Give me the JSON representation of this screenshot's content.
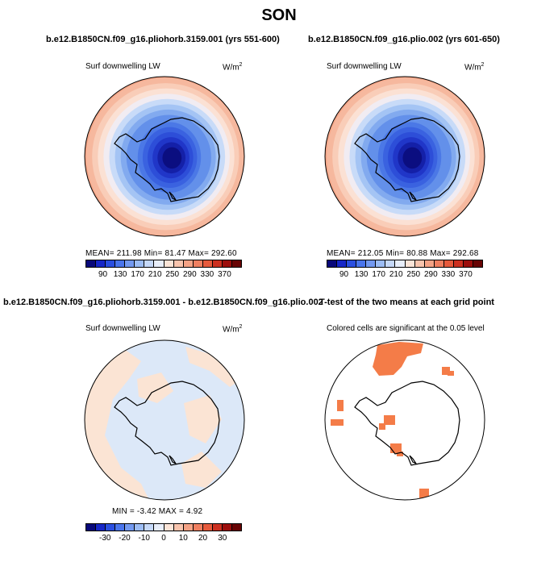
{
  "season": "SON",
  "panels": {
    "top_left": {
      "title": "b.e12.B1850CN.f09_g16.pliohorb.3159.001 (yrs 551-600)",
      "variable": "Surf downwelling LW",
      "units": "W/m",
      "units_exp": "2",
      "stats": "MEAN=  211.98    Min=   81.47    Max=  292.60"
    },
    "top_right": {
      "title": "b.e12.B1850CN.f09_g16.plio.002 (yrs 601-650)",
      "variable": "Surf downwelling LW",
      "units": "W/m",
      "units_exp": "2",
      "stats": "MEAN=  212.05    Min=   80.88    Max=  292.68"
    },
    "bottom_left": {
      "title": "b.e12.B1850CN.f09_g16.pliohorb.3159.001 - b.e12.B1850CN.f09_g16.plio.002",
      "variable": "Surf downwelling LW",
      "units": "W/m",
      "units_exp": "2",
      "stats": "MIN =   -3.42  MAX =     4.92"
    },
    "bottom_right": {
      "title": "T-test of the two means at each grid point",
      "note": "Colored cells are significant at the 0.05 level"
    }
  },
  "colorbars": {
    "absolute": {
      "labels": [
        "90",
        "130",
        "170",
        "210",
        "250",
        "290",
        "330",
        "370"
      ],
      "colors": [
        "#08087a",
        "#1727c7",
        "#2b4fe0",
        "#4a75ec",
        "#7399f0",
        "#9cbcf4",
        "#c5d8f8",
        "#e8eefa",
        "#fbe4d7",
        "#f8c4ad",
        "#f4a285",
        "#ef7f60",
        "#e65a3c",
        "#cc3020",
        "#9c0e0c",
        "#680404"
      ]
    },
    "difference": {
      "labels": [
        "-30",
        "-20",
        "-10",
        "0",
        "10",
        "20",
        "30"
      ],
      "colors": [
        "#08087a",
        "#1727c7",
        "#2b4fe0",
        "#4a75ec",
        "#7399f0",
        "#9cbcf4",
        "#c5d8f8",
        "#e8eefa",
        "#fbe4d7",
        "#f8c4ad",
        "#f4a285",
        "#ef7f60",
        "#e65a3c",
        "#cc3020",
        "#9c0e0c",
        "#680404"
      ]
    }
  },
  "map_colors": {
    "absolute_rings": [
      "#f3a486",
      "#f6b89e",
      "#f9cdb8",
      "#fbe1d4",
      "#f1ecf2",
      "#c8dbf8",
      "#a4c4f4",
      "#82aaef",
      "#6390ea",
      "#4b78e6",
      "#3a62e0",
      "#2d4ed8",
      "#2036c8",
      "#1420a8",
      "#0b0e80"
    ],
    "diff_light_blue": "#dce8f8",
    "diff_light_orange": "#fbe4d4",
    "significant": "#f47c48"
  }
}
